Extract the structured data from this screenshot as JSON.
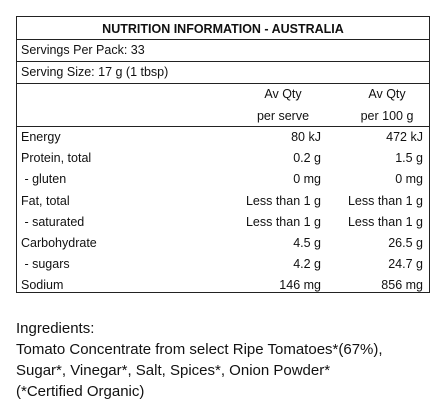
{
  "nutrition": {
    "title": "NUTRITION INFORMATION - AUSTRALIA",
    "servings_per_pack": "Servings Per Pack: 33",
    "serving_size": "Serving Size: 17 g (1 tbsp)",
    "col_serve_line1": "Av Qty",
    "col_serve_line2": "per serve",
    "col_100g_line1": "Av Qty",
    "col_100g_line2": "per 100 g",
    "rows": [
      {
        "label": "Energy",
        "per_serve": "80 kJ",
        "per_100g": "472 kJ"
      },
      {
        "label": "Protein, total",
        "per_serve": "0.2 g",
        "per_100g": "1.5 g"
      },
      {
        "label": " - gluten",
        "per_serve": "0 mg",
        "per_100g": "0 mg"
      },
      {
        "label": "Fat, total",
        "per_serve": "Less than 1 g",
        "per_100g": "Less than 1 g"
      },
      {
        "label": " - saturated",
        "per_serve": "Less than 1 g",
        "per_100g": "Less than 1 g"
      },
      {
        "label": "Carbohydrate",
        "per_serve": "4.5 g",
        "per_100g": "26.5 g"
      },
      {
        "label": " - sugars",
        "per_serve": "4.2 g",
        "per_100g": "24.7 g"
      },
      {
        "label": "Sodium",
        "per_serve": "146 mg",
        "per_100g": "856 mg"
      }
    ]
  },
  "ingredients": {
    "heading": "Ingredients:",
    "line1": "Tomato Concentrate from select Ripe Tomatoes*(67%),",
    "line2": "Sugar*, Vinegar*, Salt, Spices*, Onion Powder*",
    "line3": "(*Certified Organic)"
  }
}
